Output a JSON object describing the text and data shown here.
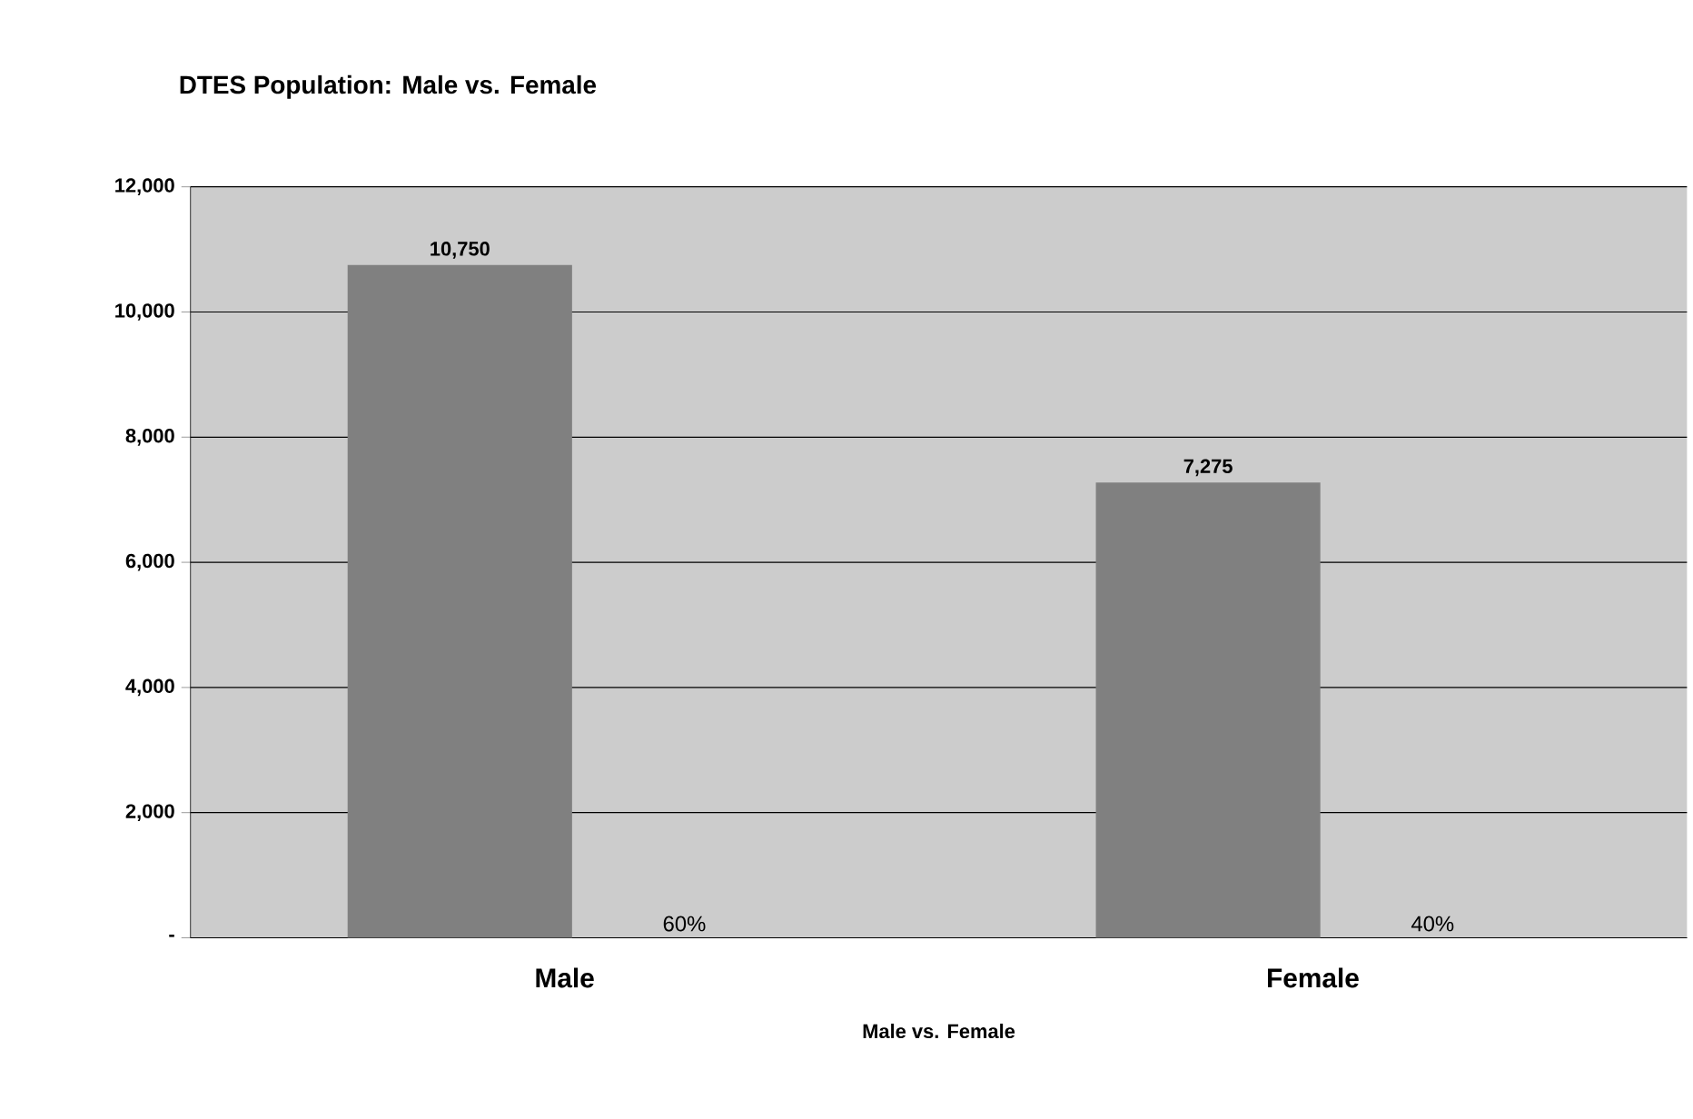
{
  "chart_data": {
    "type": "bar",
    "title": "DTES Population: Male vs. Female",
    "xlabel": "Male vs. Female",
    "categories": [
      "Male",
      "Female"
    ],
    "values": [
      10750,
      7275
    ],
    "value_labels": [
      "10,750",
      "7,275"
    ],
    "color": "#808080",
    "ylim": [
      0,
      12000
    ],
    "yticks": [
      {
        "value": 0,
        "label": "-"
      },
      {
        "value": 2000,
        "label": "2,000"
      },
      {
        "value": 4000,
        "label": "4,000"
      },
      {
        "value": 6000,
        "label": "6,000"
      },
      {
        "value": 8000,
        "label": "8,000"
      },
      {
        "value": 10000,
        "label": "10,000"
      },
      {
        "value": 12000,
        "label": "12,000"
      }
    ],
    "grid": "y",
    "annotations": [
      "60%",
      "40%"
    ]
  }
}
